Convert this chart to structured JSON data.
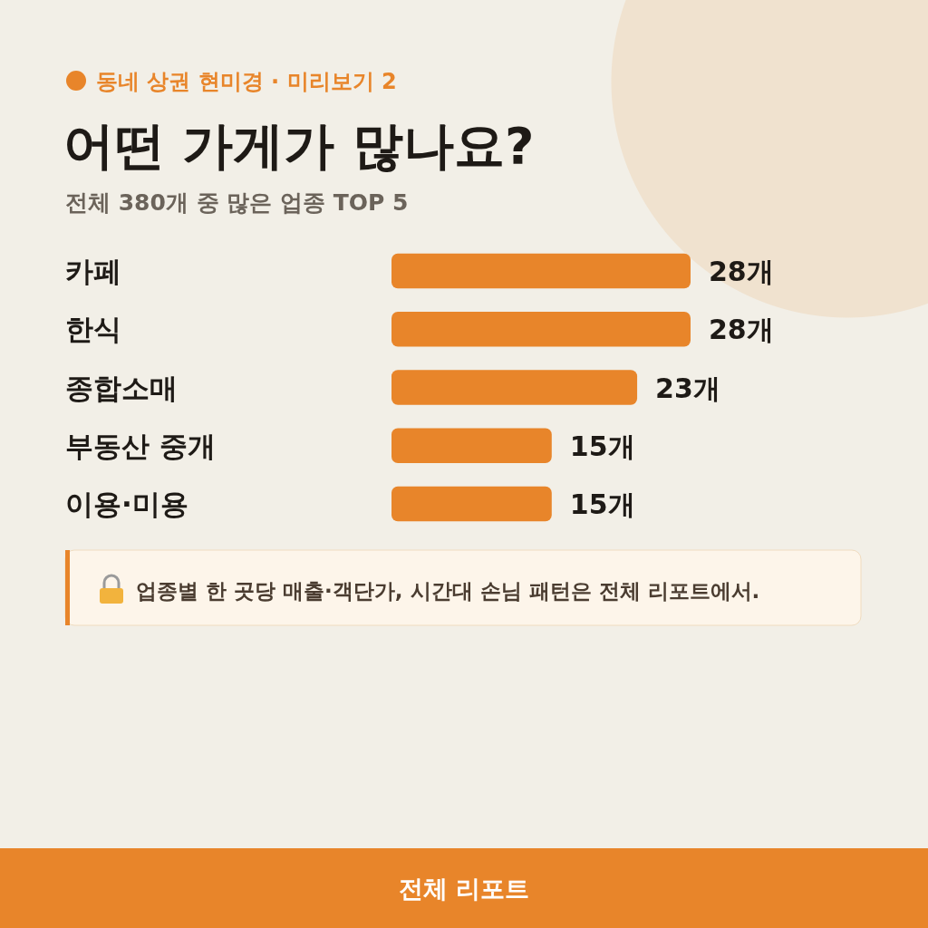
{
  "chart_data": {
    "type": "bar",
    "orientation": "horizontal",
    "title": "어떤 가게가 많나요?",
    "subtitle": "전체 380개 중 많은 업종 TOP 5",
    "categories": [
      "카페",
      "한식",
      "종합소매",
      "부동산 중개",
      "이용·미용"
    ],
    "values": [
      28,
      28,
      23,
      15,
      15
    ],
    "value_labels": [
      "28개",
      "28개",
      "23개",
      "15개",
      "15개"
    ],
    "color": "#e8852a",
    "annotations": [
      "동네 상권 현미경 · 미리보기 2",
      "업종별 한 곳당 매출·객단가, 시간대 손님 패턴은 전체 리포트에서.",
      "전체 리포트"
    ]
  }
}
